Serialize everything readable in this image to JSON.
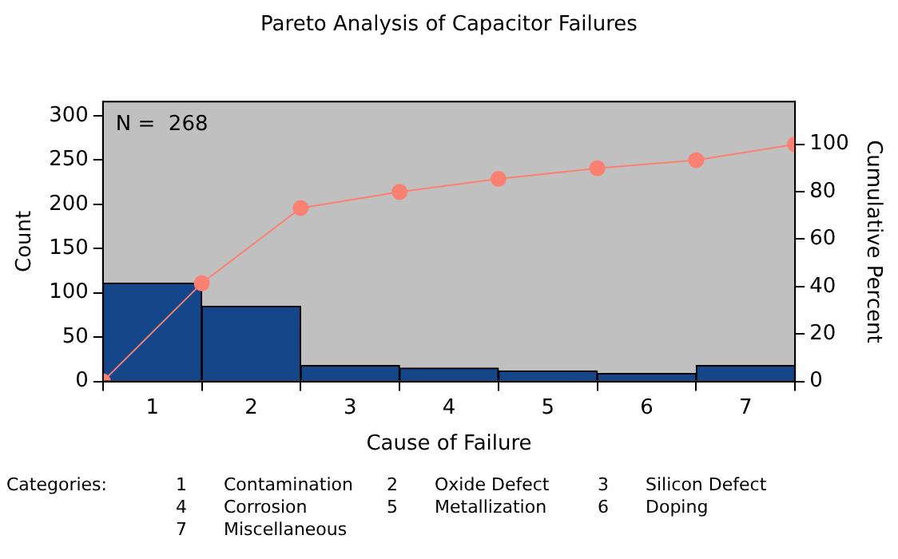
{
  "chart_data": {
    "type": "bar",
    "title": "Pareto Analysis of Capacitor Failures",
    "xlabel": "Cause of Failure",
    "ylabel": "Count",
    "y2label": "Cumulative Percent",
    "x": [
      1,
      2,
      3,
      4,
      5,
      6,
      7
    ],
    "xlim": [
      0.5,
      7.5
    ],
    "xticks": [
      1,
      2,
      3,
      4,
      5,
      6,
      7
    ],
    "ylim": [
      0,
      316
    ],
    "yticks": [
      0,
      50,
      100,
      150,
      200,
      250,
      300
    ],
    "y2lim": [
      0,
      118
    ],
    "y2ticks": [
      0,
      20,
      40,
      60,
      80,
      100
    ],
    "series": [
      {
        "color": "#15468a",
        "values": [
          111,
          85,
          18,
          15,
          12,
          9,
          18
        ]
      },
      {
        "type": "line",
        "axis": "y2",
        "color": "#fa8072",
        "x": [
          0.5,
          1.5,
          2.5,
          3.5,
          4.5,
          5.5,
          6.5,
          7.5
        ],
        "values": [
          0,
          41.4,
          73.1,
          79.9,
          85.4,
          89.9,
          93.3,
          100
        ],
        "marker": "circle"
      }
    ],
    "annotations": [
      "N =  268",
      "Categories:",
      "1",
      "Contamination",
      "2",
      "Oxide Defect",
      "3",
      "Silicon Defect",
      "4",
      "Corrosion",
      "5",
      "Metallization",
      "6",
      "Doping",
      "7",
      "Miscellaneous"
    ],
    "grid": false,
    "legend": false
  }
}
